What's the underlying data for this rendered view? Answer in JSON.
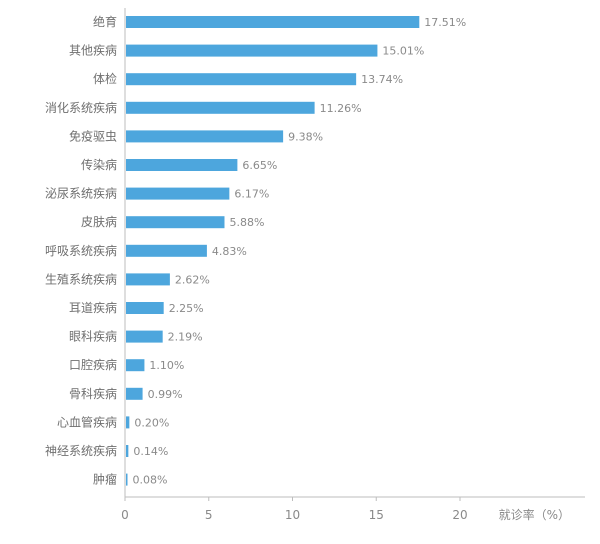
{
  "chart_data": {
    "type": "bar",
    "orientation": "horizontal",
    "categories": [
      "绝育",
      "其他疾病",
      "体检",
      "消化系统疾病",
      "免疫驱虫",
      "传染病",
      "泌尿系统疾病",
      "皮肤病",
      "呼吸系统疾病",
      "生殖系统疾病",
      "耳道疾病",
      "眼科疾病",
      "口腔疾病",
      "骨科疾病",
      "心血管疾病",
      "神经系统疾病",
      "肿瘤"
    ],
    "values": [
      17.51,
      15.01,
      13.74,
      11.26,
      9.38,
      6.65,
      6.17,
      5.88,
      4.83,
      2.62,
      2.25,
      2.19,
      1.1,
      0.99,
      0.2,
      0.14,
      0.08
    ],
    "value_labels": [
      "17.51%",
      "15.01%",
      "13.74%",
      "11.26%",
      "9.38%",
      "6.65%",
      "6.17%",
      "5.88%",
      "4.83%",
      "2.62%",
      "2.25%",
      "2.19%",
      "1.10%",
      "0.99%",
      "0.20%",
      "0.14%",
      "0.08%"
    ],
    "xticks": [
      0,
      5,
      10,
      15,
      20
    ],
    "xtick_labels": [
      "0",
      "5",
      "10",
      "15",
      "20"
    ],
    "xlim": [
      0,
      20
    ],
    "xlabel": "就诊率（%）",
    "grid": false,
    "bar_color": "#4da6dd"
  }
}
